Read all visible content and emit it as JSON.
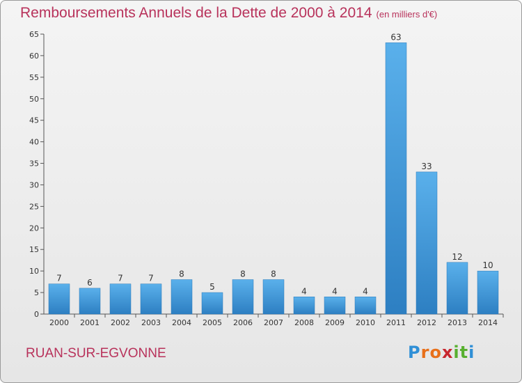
{
  "title": "Remboursements Annuels de la Dette de 2000 à 2014",
  "subtitle": "(en milliers d'€)",
  "commune": "RUAN-SUR-EGVONNE",
  "logo": {
    "letters": [
      "P",
      "r",
      "o",
      "x",
      "i",
      "t",
      "i"
    ],
    "colors": [
      "#2f8fd6",
      "#e8701a",
      "#e8701a",
      "#c7262e",
      "#58b030",
      "#58b030",
      "#2f8fd6"
    ]
  },
  "colors": {
    "bar": "#3d97dc",
    "bar_light": "#5ab0eb",
    "bar_dark": "#2d7fc2",
    "title": "#b8325b"
  },
  "chart_data": {
    "type": "bar",
    "title": "Remboursements Annuels de la Dette de 2000 à 2014",
    "subtitle": "(en milliers d'€)",
    "categories": [
      "2000",
      "2001",
      "2002",
      "2003",
      "2004",
      "2005",
      "2006",
      "2007",
      "2008",
      "2009",
      "2010",
      "2011",
      "2012",
      "2013",
      "2014"
    ],
    "values": [
      7,
      6,
      7,
      7,
      8,
      5,
      8,
      8,
      4,
      4,
      4,
      63,
      33,
      12,
      10
    ],
    "ylim": [
      0,
      65
    ],
    "yticks": [
      0,
      5,
      10,
      15,
      20,
      25,
      30,
      35,
      40,
      45,
      50,
      55,
      60,
      65
    ],
    "grid": false,
    "legend": "none"
  }
}
